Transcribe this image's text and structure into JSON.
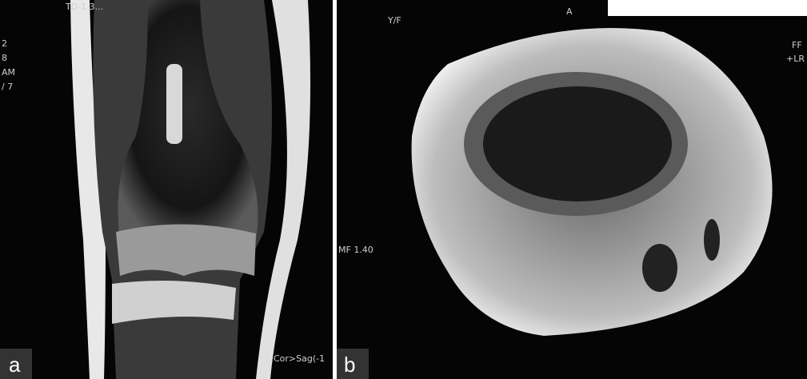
{
  "panels": [
    {
      "label": "a",
      "overlay_texts": [
        "TD-1.3...",
        "2",
        "8",
        "AM",
        "/ 7",
        "Cor>Sag(-1"
      ]
    },
    {
      "label": "b",
      "overlay_texts": [
        "Y/F",
        "A",
        "FF",
        "+LR",
        "MF 1.40"
      ]
    }
  ]
}
